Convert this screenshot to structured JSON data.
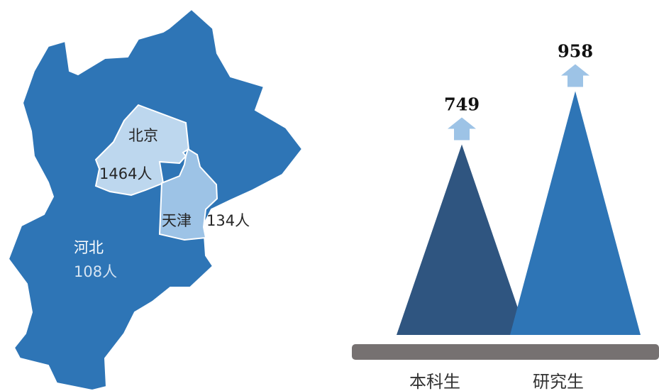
{
  "colors": {
    "hebei": "#2e75b6",
    "beijing": "#bdd7ee",
    "tianjin": "#9dc3e6",
    "peak_undergrad": "#2f5580",
    "peak_grad": "#2e75b6",
    "arrow": "#9dc3e6",
    "baseline": "#767171"
  },
  "map": {
    "hebei": {
      "name": "河北",
      "count": "108人"
    },
    "beijing": {
      "name": "北京",
      "count": "1464人"
    },
    "tianjin": {
      "name": "天津",
      "count": "134人"
    }
  },
  "chart_data": {
    "type": "bar",
    "categories": [
      "本科生",
      "研究生"
    ],
    "values": [
      749,
      958
    ],
    "value_labels": [
      "749",
      "958"
    ]
  }
}
